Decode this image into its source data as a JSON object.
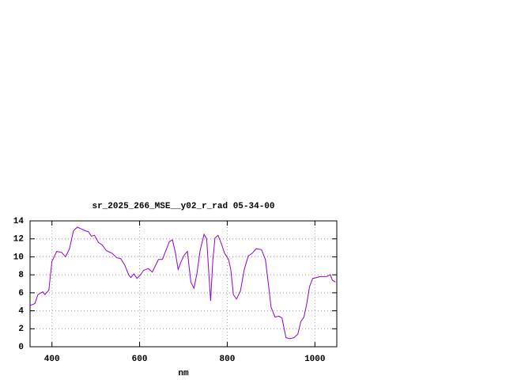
{
  "chart_data": {
    "type": "line",
    "title": "sr_2025_266_MSE__y02_r_rad 05-34-00",
    "x_label": "nm",
    "xlim": [
      350,
      1050
    ],
    "xticks": [
      400,
      600,
      800,
      1000
    ],
    "ylim": [
      0,
      14
    ],
    "yticks": [
      0,
      2,
      4,
      6,
      8,
      10,
      12,
      14
    ],
    "grid": true,
    "series": [
      {
        "color": "#9400d3",
        "x": [
          350,
          361,
          368,
          379,
          384,
          393,
          400,
          411,
          422,
          431,
          440,
          449,
          458,
          467,
          476,
          483,
          490,
          497,
          506,
          515,
          524,
          537,
          548,
          557,
          566,
          575,
          580,
          587,
          594,
          602,
          609,
          620,
          629,
          638,
          643,
          652,
          659,
          668,
          675,
          682,
          688,
          695,
          702,
          709,
          717,
          724,
          731,
          738,
          747,
          753,
          758,
          762,
          767,
          772,
          779,
          787,
          794,
          803,
          808,
          814,
          821,
          830,
          839,
          848,
          857,
          866,
          878,
          887,
          893,
          900,
          909,
          918,
          925,
          934,
          943,
          952,
          961,
          968,
          975,
          981,
          988,
          995,
          1004,
          1011,
          1018,
          1026,
          1035,
          1040,
          1047
        ],
        "values": [
          4.6,
          4.8,
          5.8,
          6.1,
          5.8,
          6.3,
          9.5,
          10.6,
          10.5,
          10.0,
          10.9,
          12.9,
          13.3,
          13.1,
          12.9,
          12.8,
          12.3,
          12.4,
          11.6,
          11.3,
          10.7,
          10.4,
          9.9,
          9.8,
          9.1,
          8.0,
          7.7,
          8.1,
          7.6,
          8.0,
          8.5,
          8.7,
          8.3,
          9.2,
          9.7,
          9.7,
          10.6,
          11.7,
          11.9,
          10.4,
          8.6,
          9.5,
          10.2,
          10.6,
          7.2,
          6.5,
          8.2,
          10.7,
          12.5,
          12.0,
          8.2,
          5.1,
          9.5,
          12.1,
          12.4,
          11.4,
          10.4,
          9.7,
          8.6,
          5.8,
          5.3,
          6.2,
          8.6,
          10.1,
          10.4,
          10.9,
          10.8,
          9.7,
          7.3,
          4.4,
          3.3,
          3.4,
          3.2,
          1.0,
          0.9,
          1.0,
          1.4,
          2.8,
          3.3,
          4.7,
          6.7,
          7.6,
          7.7,
          7.8,
          7.8,
          7.8,
          8.0,
          7.4,
          7.2
        ]
      }
    ]
  }
}
